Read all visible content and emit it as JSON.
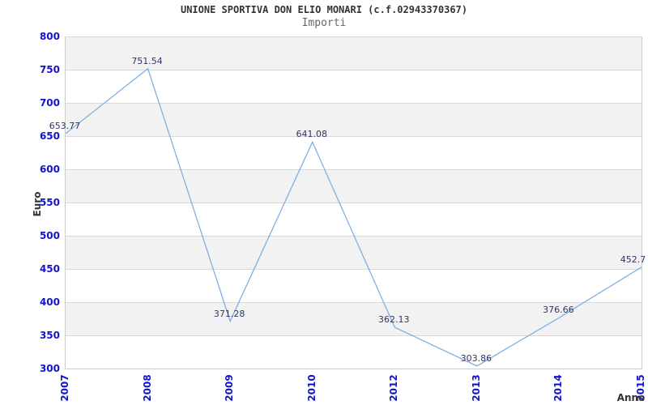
{
  "chart_data": {
    "type": "line",
    "title": "UNIONE SPORTIVA DON ELIO MONARI (c.f.02943370367)",
    "subtitle": "Importi",
    "xlabel": "Anno",
    "ylabel": "Euro",
    "categories": [
      "2007",
      "2008",
      "2009",
      "2010",
      "2012",
      "2013",
      "2014",
      "2015"
    ],
    "values": [
      653.77,
      751.54,
      371.28,
      641.08,
      362.13,
      303.86,
      376.66,
      452.7
    ],
    "point_labels": [
      "653.77",
      "751.54",
      "371.28",
      "641.08",
      "362.13",
      "303.86",
      "376.66",
      "452.7"
    ],
    "ylim": [
      300,
      800
    ],
    "ytick_step": 50,
    "ytick_labels": [
      "300",
      "350",
      "400",
      "450",
      "500",
      "550",
      "600",
      "650",
      "700",
      "750",
      "800"
    ],
    "grid": "horizontal-bands-alternating",
    "legend": "none",
    "colors": {
      "line": "#7FB0E2",
      "tick_label": "#1414CC",
      "point_label": "#333366",
      "band": "#F2F2F2",
      "gridline": "#D9D9D9",
      "axis_border": "#CCCCCC",
      "title": "#333333",
      "subtitle": "#666666",
      "axis_title": "#333333"
    }
  }
}
